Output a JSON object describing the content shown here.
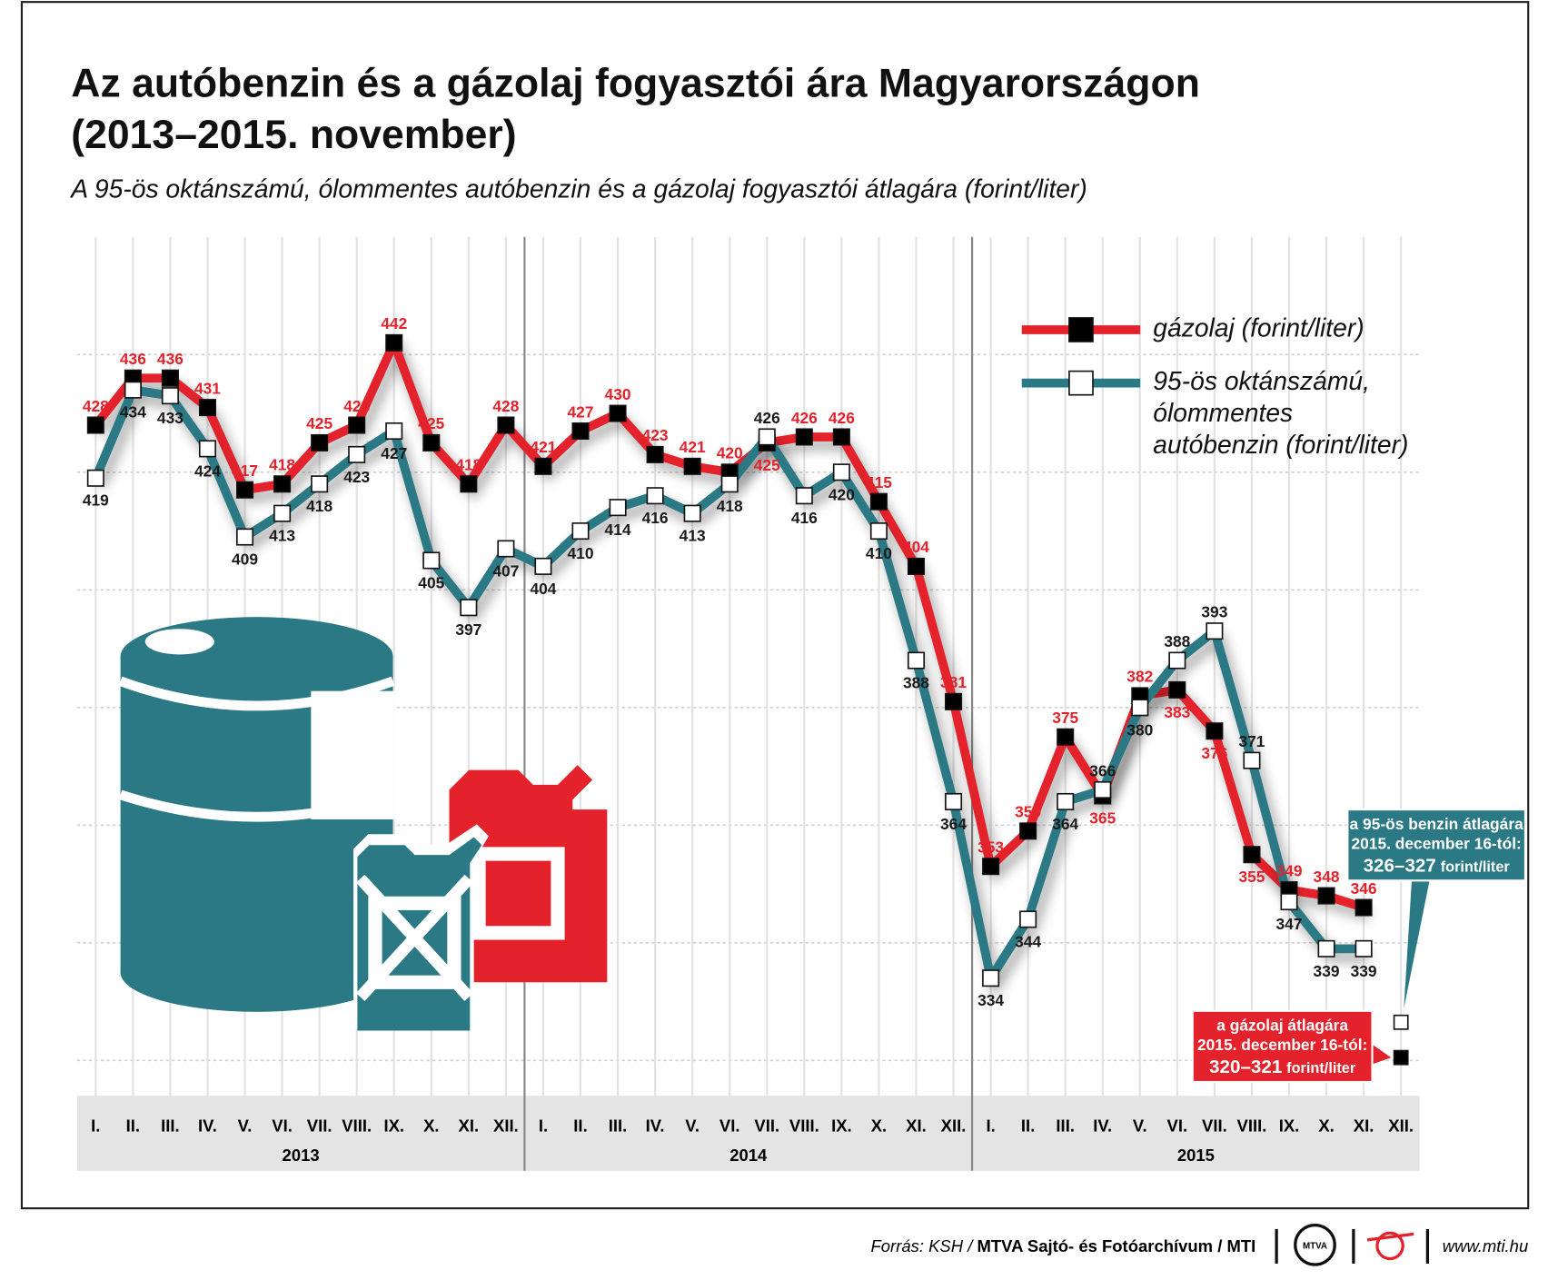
{
  "chart_data": {
    "type": "line",
    "title": [
      "Az autóbenzin és a gázolaj fogyasztói ára Magyarországon",
      "(2013–2015. november)"
    ],
    "subtitle": "A 95-ös oktánszámú, ólommentes autóbenzin és a gázolaj fogyasztói átlagára (forint/liter)",
    "categories": [
      "I.",
      "II.",
      "III.",
      "IV.",
      "V.",
      "VI.",
      "VII.",
      "VIII.",
      "IX.",
      "X.",
      "XI.",
      "XII.",
      "I.",
      "II.",
      "III.",
      "IV.",
      "V.",
      "VI.",
      "VII.",
      "VIII.",
      "IX.",
      "X.",
      "XI.",
      "XII.",
      "I.",
      "II.",
      "III.",
      "IV.",
      "V.",
      "VI.",
      "VII.",
      "VIII.",
      "IX.",
      "X.",
      "XI.",
      "XII."
    ],
    "years": [
      "2013",
      "2014",
      "2015"
    ],
    "series": [
      {
        "name": "gázolaj (forint/liter)",
        "color": "#e3222b",
        "marker": "#000000",
        "label_color": "#e3222b",
        "values": [
          428,
          436,
          436,
          431,
          417,
          418,
          425,
          428,
          442,
          425,
          418,
          428,
          421,
          427,
          430,
          423,
          421,
          420,
          425,
          426,
          426,
          415,
          404,
          381,
          353,
          359,
          375,
          365,
          382,
          383,
          376,
          355,
          349,
          348,
          346,
          null
        ]
      },
      {
        "name": "95-ös oktánszámú, ólommentes autóbenzin (forint/liter)",
        "color": "#2a7984",
        "marker": "#ffffff",
        "label_color": "#1a1a1a",
        "values": [
          419,
          434,
          433,
          424,
          409,
          413,
          418,
          423,
          427,
          405,
          397,
          407,
          404,
          410,
          414,
          416,
          413,
          418,
          426,
          416,
          420,
          410,
          388,
          364,
          334,
          344,
          364,
          366,
          380,
          388,
          393,
          371,
          347,
          339,
          339,
          null
        ]
      }
    ],
    "ylim": [
      314,
      460
    ],
    "yticks": [
      320,
      340,
      360,
      380,
      400,
      420,
      440
    ],
    "grid": true,
    "annotations": [
      {
        "series": 1,
        "value": 326.5,
        "lines": [
          "a 95-ös benzin átlagára",
          "2015. december 16-tól:"
        ],
        "range": "326–327",
        "unit": "forint/liter"
      },
      {
        "series": 0,
        "value": 320.5,
        "lines": [
          "a gázolaj átlagára",
          "2015. december 16-tól:"
        ],
        "range": "320–321",
        "unit": "forint/liter"
      }
    ],
    "source": [
      "Forrás: KSH / ",
      "MTVA Sajtó- és Fotóarchívum / MTI"
    ],
    "logo": "MTVA",
    "url": "www.mti.hu"
  }
}
